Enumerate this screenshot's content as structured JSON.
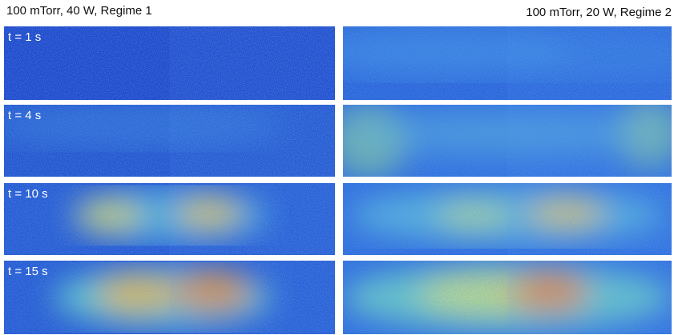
{
  "columns": [
    {
      "title": "100 mTorr, 40 W, Regime 1"
    },
    {
      "title": "100 mTorr, 20 W, Regime 2"
    }
  ],
  "rows": [
    {
      "label": "t = 1 s"
    },
    {
      "label": "t = 4 s"
    },
    {
      "label": "t = 10 s"
    },
    {
      "label": "t = 15 s"
    }
  ]
}
